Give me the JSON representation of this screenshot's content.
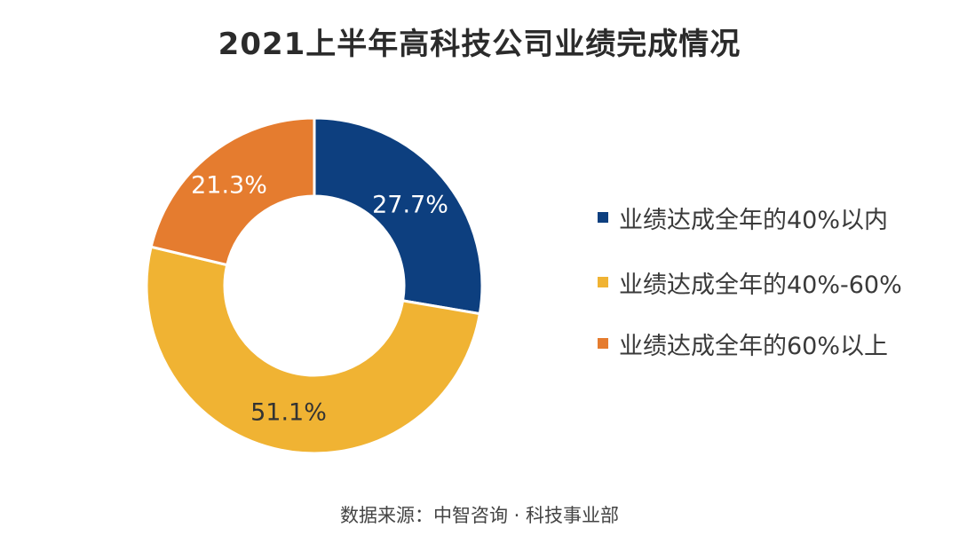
{
  "chart_data": {
    "type": "pie",
    "variant": "donut",
    "title": "2021上半年高科技公司业绩完成情况",
    "categories": [
      "业绩达成全年的40%以内",
      "业绩达成全年的40%-60%",
      "业绩达成全年的60%以上"
    ],
    "values": [
      27.7,
      51.1,
      21.3
    ],
    "data_labels": [
      "27.7%",
      "51.1%",
      "21.3%"
    ],
    "colors": [
      "#0d3f7f",
      "#f0b333",
      "#e57c2f"
    ],
    "label_colors": [
      "#ffffff",
      "#333333",
      "#ffffff"
    ],
    "legend_position": "right",
    "source": "数据来源：中智咨询 · 科技事业部"
  }
}
